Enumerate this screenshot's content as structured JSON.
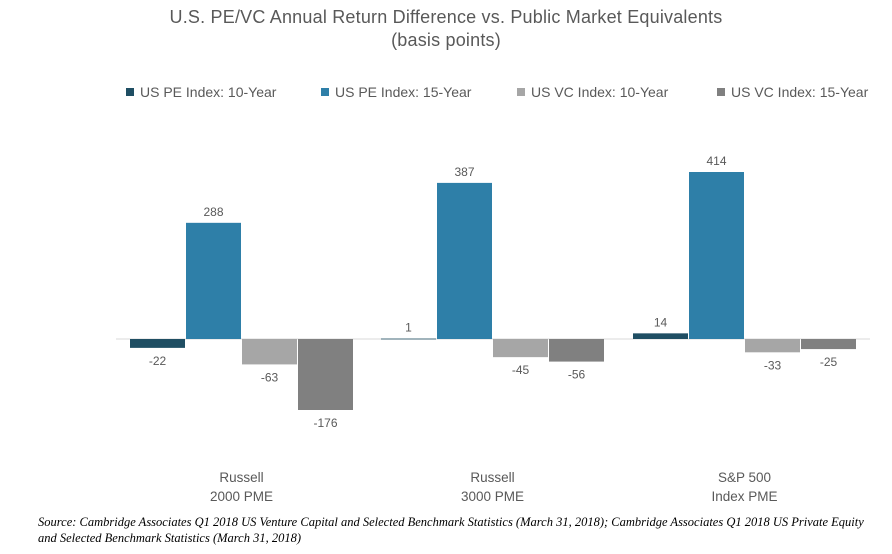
{
  "title_line1": "U.S. PE/VC Annual Return Difference vs. Public Market Equivalents",
  "title_line2": "(basis points)",
  "source": "Source: Cambridge Associates Q1 2018 US Venture Capital and Selected Benchmark Statistics (March 31, 2018); Cambridge Associates Q1 2018 US Private Equity and Selected Benchmark Statistics (March 31, 2018)",
  "colors": {
    "US PE Index: 10-Year": "#1f4e63",
    "US PE Index: 15-Year": "#2e7fa8",
    "US VC Index: 10-Year": "#a6a6a6",
    "US VC Index: 15-Year": "#808080"
  },
  "chart_data": {
    "type": "bar",
    "title": "U.S. PE/VC Annual Return Difference vs. Public Market Equivalents (basis points)",
    "categories": [
      [
        "Russell",
        "2000 PME"
      ],
      [
        "Russell",
        "3000 PME"
      ],
      [
        "S&P 500",
        "Index PME"
      ]
    ],
    "series": [
      {
        "name": "US PE Index: 10-Year",
        "values": [
          -22,
          1,
          14
        ]
      },
      {
        "name": "US PE Index: 15-Year",
        "values": [
          288,
          387,
          414
        ]
      },
      {
        "name": "US VC Index: 10-Year",
        "values": [
          -63,
          -45,
          -33
        ]
      },
      {
        "name": "US VC Index: 15-Year",
        "values": [
          -176,
          -56,
          -25
        ]
      }
    ],
    "data_labels": true,
    "legend": "top",
    "grid": false,
    "xlabel": "",
    "ylabel": ""
  }
}
